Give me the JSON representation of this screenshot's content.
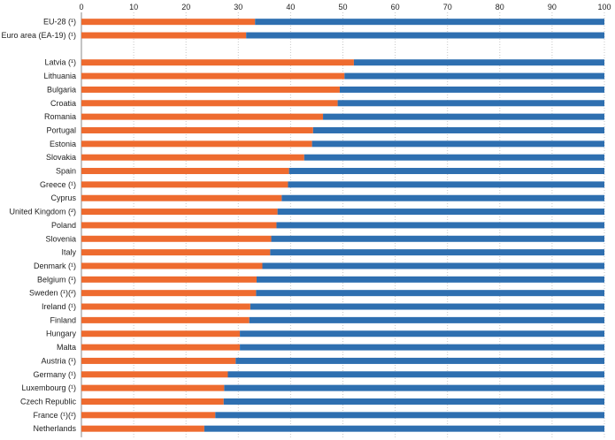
{
  "chart_data": {
    "type": "bar",
    "orientation": "horizontal",
    "stacked": true,
    "xlim": [
      0,
      100
    ],
    "xticks": [
      0,
      10,
      20,
      30,
      40,
      50,
      60,
      70,
      80,
      90,
      100
    ],
    "grid": true,
    "colors": [
      "#ee6b2f",
      "#2e6fb0"
    ],
    "categories": [
      "EU-28 (¹)",
      "Euro area (EA-19) (¹)",
      "",
      "Latvia (¹)",
      "Lithuania",
      "Bulgaria",
      "Croatia",
      "Romania",
      "Portugal",
      "Estonia",
      "Slovakia",
      "Spain",
      "Greece (¹)",
      "Cyprus",
      "United Kingdom (²)",
      "Poland",
      "Slovenia",
      "Italy",
      "Denmark (¹)",
      "Belgium (¹)",
      "Sweden (¹)(²)",
      "Ireland (¹)",
      "Finland",
      "Hungary",
      "Malta",
      "Austria (¹)",
      "Germany (¹)",
      "Luxembourg (¹)",
      "Czech Republic",
      "France (¹)(²)",
      "Netherlands"
    ],
    "series": [
      {
        "values": [
          33.2,
          31.5,
          null,
          52.1,
          50.3,
          49.4,
          49.0,
          46.2,
          44.3,
          44.1,
          42.6,
          39.7,
          39.5,
          38.3,
          37.5,
          37.3,
          36.3,
          36.1,
          34.6,
          33.5,
          33.4,
          32.3,
          32.1,
          30.3,
          30.3,
          29.5,
          28.0,
          27.3,
          27.2,
          25.6,
          23.5
        ]
      },
      {
        "values": [
          66.8,
          68.5,
          null,
          47.9,
          49.7,
          50.6,
          51.0,
          53.8,
          55.7,
          55.9,
          57.4,
          60.3,
          60.5,
          61.7,
          62.5,
          62.7,
          63.7,
          63.9,
          65.4,
          66.5,
          66.6,
          67.7,
          67.9,
          69.7,
          69.7,
          70.5,
          72.0,
          72.7,
          72.8,
          74.4,
          76.5
        ]
      }
    ]
  }
}
